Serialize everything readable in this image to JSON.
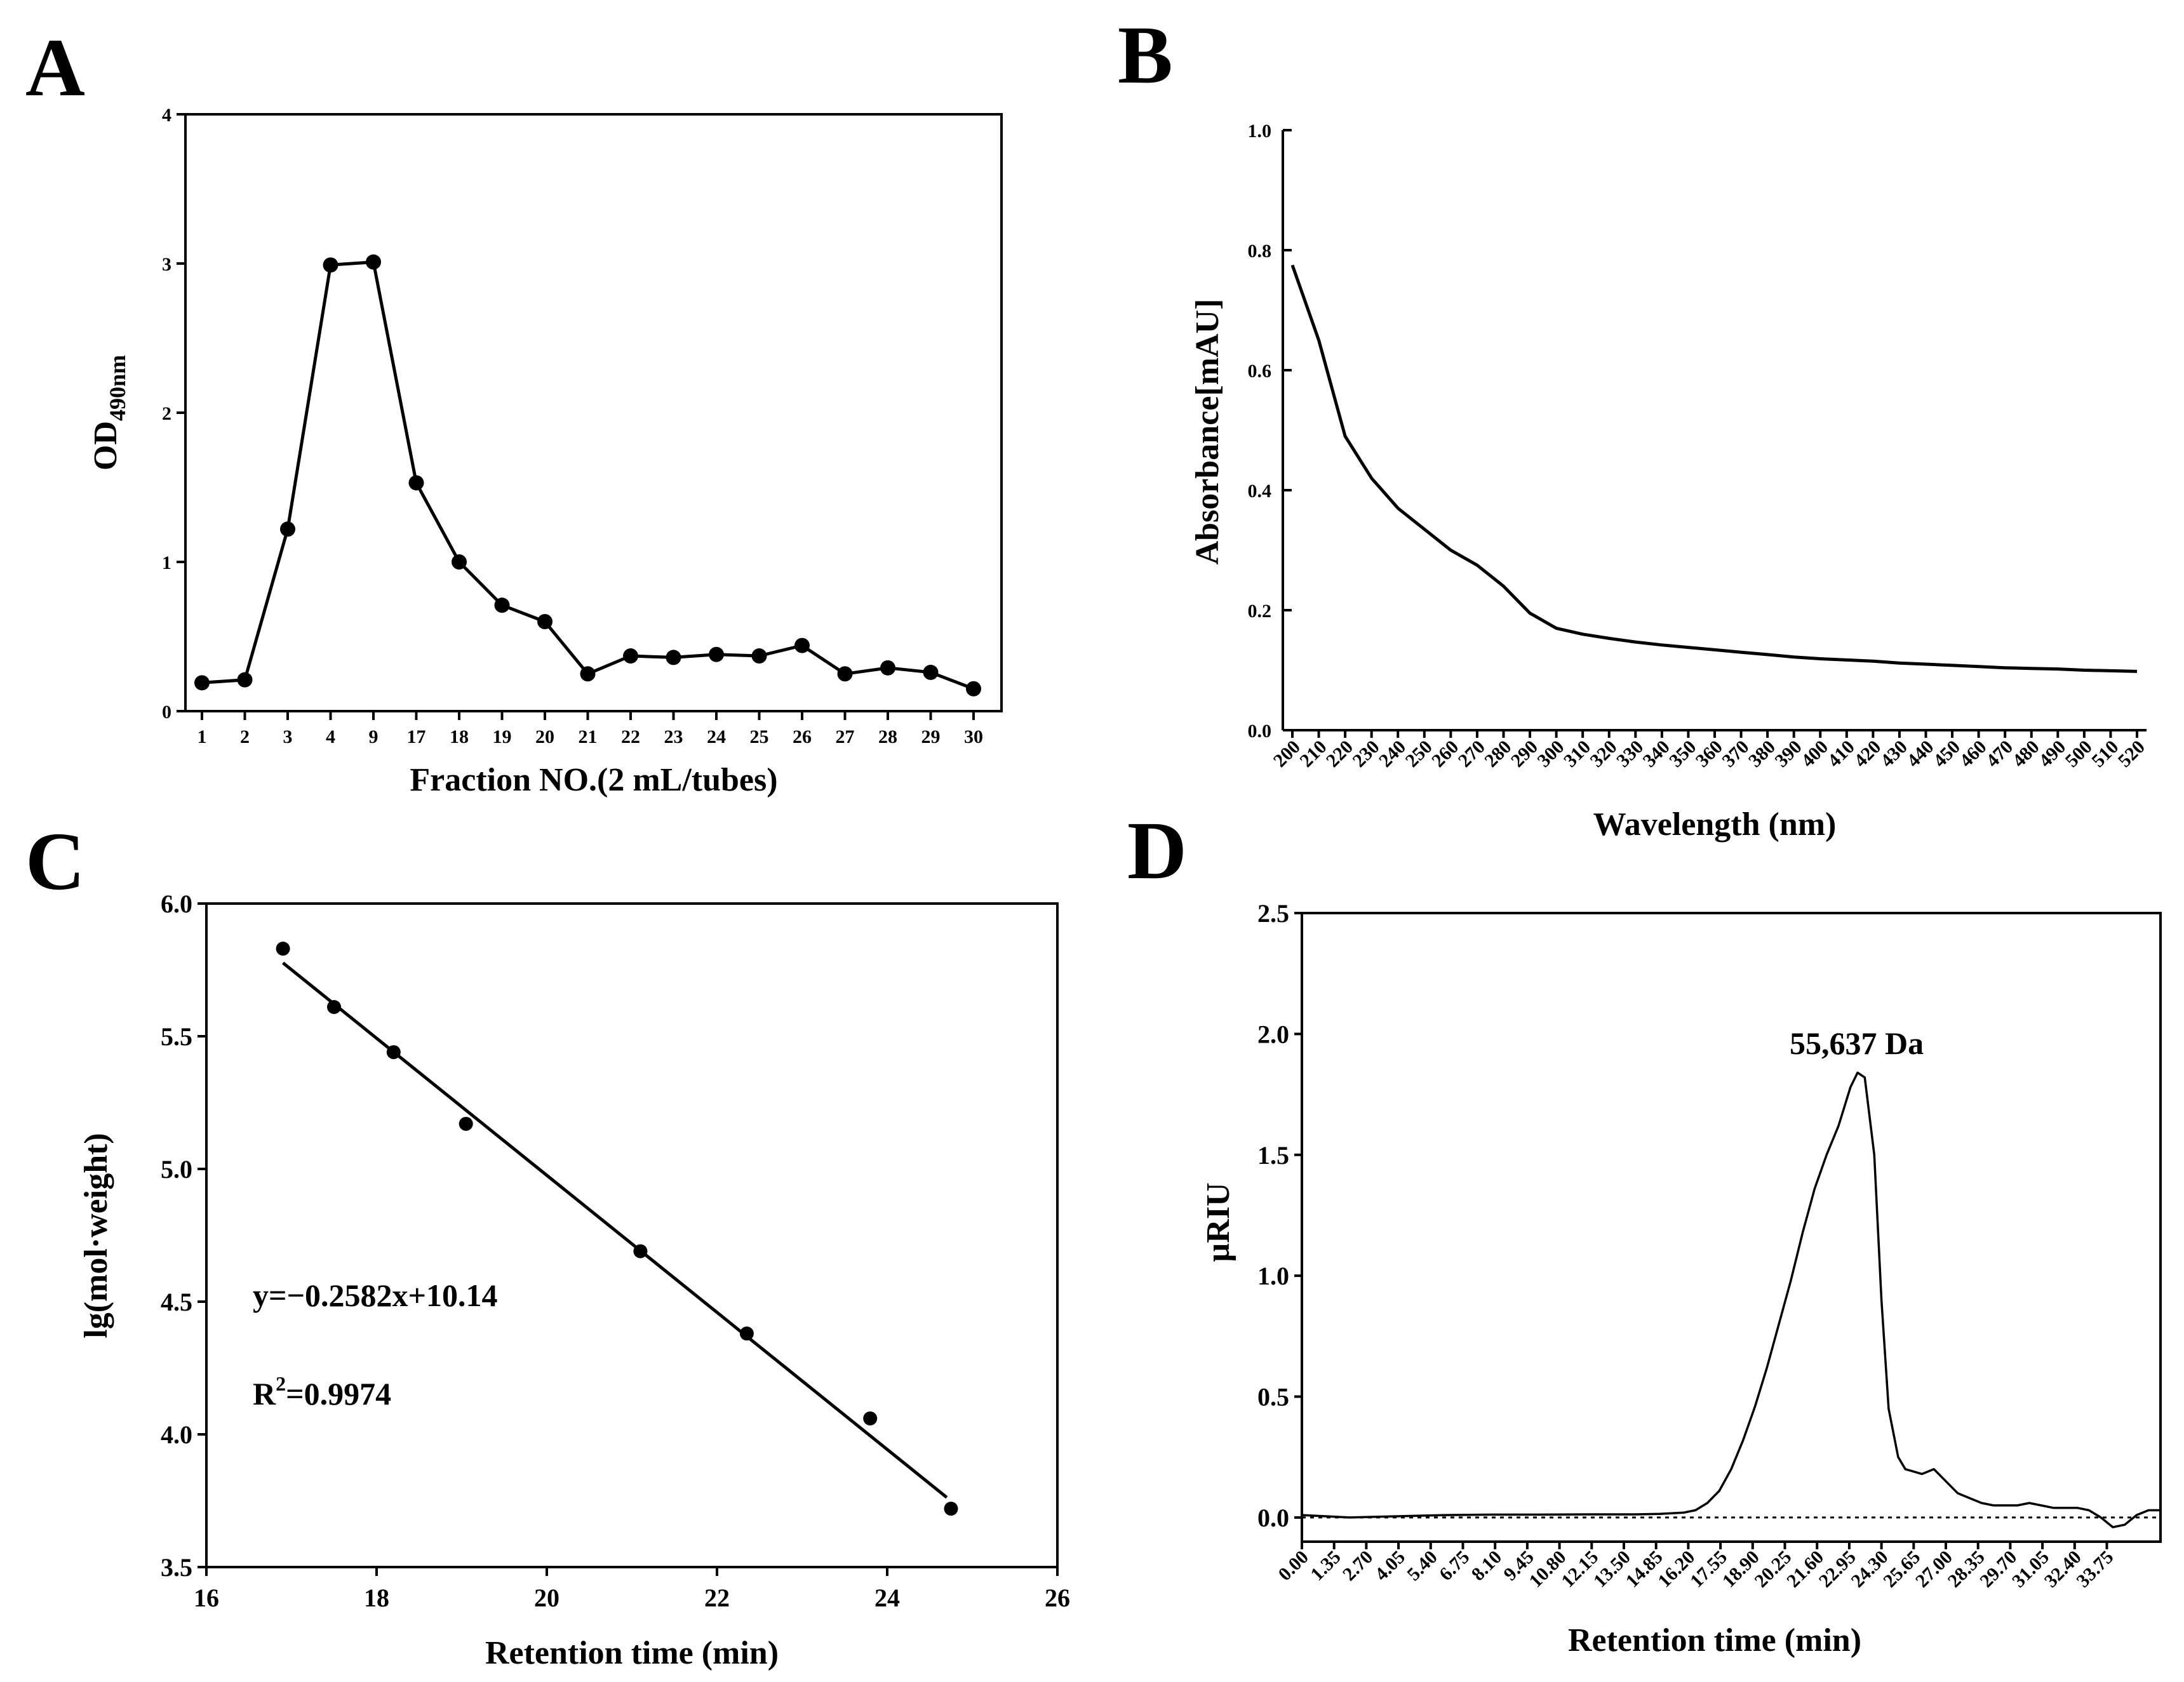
{
  "chart_data": [
    {
      "panel": "A",
      "type": "line",
      "xlabel": "Fraction NO.(2 mL/tubes)",
      "ylabel_main": "OD",
      "ylabel_sub": "490nm",
      "categories": [
        "1",
        "2",
        "3",
        "4",
        "9",
        "17",
        "18",
        "19",
        "20",
        "21",
        "22",
        "23",
        "24",
        "25",
        "26",
        "27",
        "28",
        "29",
        "30"
      ],
      "values": [
        0.19,
        0.21,
        1.22,
        2.99,
        3.01,
        1.53,
        1.0,
        0.71,
        0.6,
        0.25,
        0.37,
        0.36,
        0.38,
        0.37,
        0.44,
        0.25,
        0.29,
        0.26,
        0.15
      ],
      "markers": true,
      "ylim": [
        0,
        4
      ],
      "yticks": [
        "0",
        "1",
        "2",
        "3",
        "4"
      ]
    },
    {
      "panel": "B",
      "type": "line",
      "xlabel": "Wavelength (nm)",
      "ylabel": "Absorbance[mAU]",
      "x": [
        200,
        210,
        220,
        230,
        240,
        250,
        260,
        270,
        280,
        290,
        300,
        310,
        320,
        330,
        340,
        350,
        360,
        370,
        380,
        390,
        400,
        410,
        420,
        430,
        440,
        450,
        460,
        470,
        480,
        490,
        500,
        510,
        520
      ],
      "values": [
        0.775,
        0.65,
        0.49,
        0.42,
        0.37,
        0.335,
        0.3,
        0.275,
        0.24,
        0.195,
        0.17,
        0.16,
        0.153,
        0.147,
        0.142,
        0.138,
        0.134,
        0.13,
        0.126,
        0.122,
        0.119,
        0.117,
        0.115,
        0.112,
        0.11,
        0.108,
        0.106,
        0.104,
        0.103,
        0.102,
        0.1,
        0.099,
        0.098
      ],
      "xticks": [
        "200",
        "210",
        "220",
        "230",
        "240",
        "250",
        "260",
        "270",
        "280",
        "290",
        "300",
        "310",
        "320",
        "330",
        "340",
        "350",
        "360",
        "370",
        "380",
        "390",
        "400",
        "410",
        "420",
        "430",
        "440",
        "450",
        "460",
        "470",
        "480",
        "490",
        "500",
        "510",
        "520"
      ],
      "ylim": [
        0,
        1
      ],
      "yticks": [
        "0.0",
        "0.2",
        "0.4",
        "0.6",
        "0.8",
        "1.0"
      ]
    },
    {
      "panel": "C",
      "type": "scatter",
      "xlabel": "Retention time (min)",
      "ylabel": "lg(mol·weight)",
      "x": [
        16.9,
        17.5,
        18.2,
        19.05,
        21.1,
        22.35,
        23.8,
        24.75
      ],
      "values": [
        5.83,
        5.61,
        5.44,
        5.17,
        4.69,
        4.38,
        4.06,
        3.72
      ],
      "fit": {
        "slope": -0.2582,
        "intercept": 10.14,
        "x_range": [
          16.9,
          24.7
        ]
      },
      "equation": "y=−0.2582x+10.14",
      "r2_main": "R",
      "r2_sup": "2",
      "r2_value": "=0.9974",
      "xlim": [
        16,
        26
      ],
      "ylim": [
        3.5,
        6.0
      ],
      "xticks": [
        "16",
        "18",
        "20",
        "22",
        "24",
        "26"
      ],
      "yticks": [
        "3.5",
        "4.0",
        "4.5",
        "5.0",
        "5.5",
        "6.0"
      ]
    },
    {
      "panel": "D",
      "type": "line",
      "xlabel": "Retention time (min)",
      "ylabel": "µRIU",
      "annotation": "55,637 Da",
      "x": [
        0,
        2,
        4,
        6,
        8,
        10,
        12,
        14,
        15,
        16,
        16.5,
        17,
        17.5,
        18,
        18.5,
        19,
        19.5,
        20,
        20.5,
        21,
        21.5,
        22,
        22.5,
        23,
        23.3,
        23.6,
        24,
        24.3,
        24.6,
        25,
        25.3,
        25.65,
        26,
        26.5,
        27,
        27.5,
        28,
        28.5,
        29,
        29.5,
        30,
        30.5,
        31,
        31.5,
        32,
        32.5,
        33,
        33.5,
        34,
        34.5,
        35,
        35.5,
        36
      ],
      "values": [
        0.01,
        0.0,
        0.005,
        0.01,
        0.012,
        0.012,
        0.013,
        0.013,
        0.015,
        0.02,
        0.03,
        0.06,
        0.11,
        0.2,
        0.32,
        0.46,
        0.62,
        0.8,
        0.98,
        1.18,
        1.36,
        1.5,
        1.62,
        1.78,
        1.84,
        1.82,
        1.5,
        0.9,
        0.45,
        0.25,
        0.2,
        0.19,
        0.18,
        0.2,
        0.15,
        0.1,
        0.08,
        0.06,
        0.05,
        0.05,
        0.05,
        0.06,
        0.05,
        0.04,
        0.04,
        0.04,
        0.03,
        0.0,
        -0.04,
        -0.03,
        0.01,
        0.03,
        0.03
      ],
      "xlim": [
        0,
        36
      ],
      "ylim": [
        -0.1,
        2.5
      ],
      "xticks": [
        "0.00",
        "1.35",
        "2.70",
        "4.05",
        "5.40",
        "6.75",
        "8.10",
        "9.45",
        "10.80",
        "12.15",
        "13.50",
        "14.85",
        "16.20",
        "17.55",
        "18.90",
        "20.25",
        "21.60",
        "22.95",
        "24.30",
        "25.65",
        "27.00",
        "28.35",
        "29.70",
        "31.05",
        "32.40",
        "33.75"
      ],
      "yticks": [
        "0.0",
        "0.5",
        "1.0",
        "1.5",
        "2.0",
        "2.5"
      ]
    }
  ]
}
